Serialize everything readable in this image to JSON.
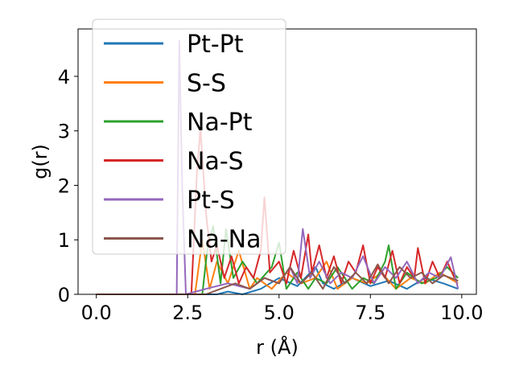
{
  "chart_data": {
    "type": "line",
    "xlabel": "r (Å)",
    "ylabel": "g(r)",
    "xlim": [
      -0.5,
      10.4
    ],
    "ylim": [
      0,
      4.87
    ],
    "xticks": [
      0.0,
      2.5,
      5.0,
      7.5,
      10.0
    ],
    "xtick_labels": [
      "0.0",
      "2.5",
      "5.0",
      "7.5",
      "10.0"
    ],
    "yticks": [
      0,
      1,
      2,
      3,
      4
    ],
    "ytick_labels": [
      "0",
      "1",
      "2",
      "3",
      "4"
    ],
    "grid": false,
    "legend_position": "upper-left",
    "series": [
      {
        "name": "Pt-Pt",
        "color": "#1f77b4",
        "x": [
          0,
          3.0,
          3.3,
          3.6,
          4.0,
          4.5,
          5.0,
          5.5,
          6.0,
          6.2,
          6.5,
          7.0,
          7.5,
          8.0,
          8.5,
          9.0,
          9.5,
          9.9
        ],
        "y": [
          0,
          0,
          0,
          0.05,
          0,
          0.1,
          0.3,
          0.15,
          0.5,
          0.2,
          0.1,
          0.3,
          0.15,
          0.25,
          0.1,
          0.3,
          0.2,
          0.1
        ]
      },
      {
        "name": "S-S",
        "color": "#ff7f0e",
        "x": [
          0,
          2.7,
          2.9,
          3.1,
          3.3,
          3.6,
          3.9,
          4.2,
          4.4,
          4.8,
          5.2,
          5.6,
          6.0,
          6.3,
          6.6,
          7.0,
          7.4,
          7.8,
          8.2,
          8.6,
          9.0,
          9.4,
          9.9
        ],
        "y": [
          0,
          0,
          1.0,
          0.1,
          0.6,
          0.2,
          0.8,
          0.1,
          0.3,
          0.1,
          0.4,
          0.2,
          0.3,
          0.6,
          0.1,
          0.3,
          0.2,
          0.4,
          0.1,
          0.3,
          0.2,
          0.4,
          0.2
        ]
      },
      {
        "name": "Na-Pt",
        "color": "#2ca02c",
        "x": [
          0,
          2.9,
          3.05,
          3.2,
          3.4,
          3.55,
          3.75,
          4.0,
          4.4,
          4.8,
          5.0,
          5.2,
          5.5,
          5.8,
          6.0,
          6.3,
          6.6,
          7.0,
          7.3,
          7.6,
          7.9,
          8.0,
          8.2,
          8.5,
          8.9,
          9.3,
          9.6,
          9.9
        ],
        "y": [
          0,
          0,
          0.9,
          1.25,
          0.2,
          1.2,
          0.3,
          0.6,
          0.2,
          0.5,
          0.95,
          0.1,
          0.4,
          0.1,
          0.3,
          0.2,
          0.5,
          0.1,
          0.3,
          0.2,
          0.6,
          0.9,
          0.1,
          0.4,
          0.2,
          0.3,
          0.5,
          0.3
        ]
      },
      {
        "name": "Na-S",
        "color": "#d62728",
        "x": [
          0,
          2.6,
          2.75,
          2.85,
          3.0,
          3.15,
          3.3,
          3.5,
          3.7,
          3.9,
          4.1,
          4.3,
          4.5,
          4.6,
          4.75,
          5.0,
          5.2,
          5.4,
          5.6,
          5.8,
          5.9,
          6.1,
          6.3,
          6.5,
          6.7,
          6.9,
          7.1,
          7.3,
          7.5,
          7.7,
          7.9,
          8.1,
          8.3,
          8.5,
          8.7,
          8.8,
          9.0,
          9.2,
          9.4,
          9.6,
          9.8
        ],
        "y": [
          0,
          0,
          2.2,
          3.05,
          1.5,
          0.6,
          0.9,
          0.3,
          0.7,
          0.2,
          0.5,
          0.3,
          0.8,
          1.78,
          0.4,
          0.6,
          0.2,
          0.8,
          0.3,
          1.1,
          0.4,
          0.9,
          0.3,
          0.7,
          0.2,
          0.6,
          0.4,
          0.9,
          0.2,
          0.5,
          0.3,
          0.8,
          0.2,
          0.5,
          0.3,
          0.85,
          0.2,
          0.6,
          0.3,
          0.6,
          0.3
        ]
      },
      {
        "name": "Pt-S",
        "color": "#9467bd",
        "x": [
          0,
          2.2,
          2.27,
          2.35,
          2.45,
          3.0,
          3.6,
          4.2,
          4.6,
          5.0,
          5.3,
          5.5,
          5.65,
          5.85,
          6.1,
          6.4,
          6.7,
          7.0,
          7.3,
          7.6,
          7.9,
          8.2,
          8.5,
          8.8,
          9.1,
          9.4,
          9.7,
          9.9
        ],
        "y": [
          0,
          0,
          4.65,
          2.0,
          0,
          0.1,
          0.2,
          0.1,
          0.3,
          0.2,
          0.5,
          0.2,
          1.2,
          0.3,
          0.6,
          0.2,
          0.4,
          0.3,
          0.7,
          0.2,
          0.5,
          0.3,
          0.6,
          0.2,
          0.4,
          0.3,
          0.68,
          0.1
        ]
      },
      {
        "name": "Na-Na",
        "color": "#8c564b",
        "x": [
          0,
          3.0,
          3.4,
          3.8,
          4.2,
          4.6,
          5.0,
          5.3,
          5.6,
          5.9,
          6.2,
          6.5,
          6.8,
          7.1,
          7.4,
          7.7,
          8.0,
          8.3,
          8.6,
          8.9,
          9.2,
          9.5,
          9.9
        ],
        "y": [
          0,
          0,
          0.1,
          0.2,
          0.1,
          0.3,
          0.2,
          0.5,
          0.2,
          0.4,
          0.1,
          0.5,
          0.2,
          0.4,
          0.2,
          0.55,
          0.2,
          0.5,
          0.3,
          0.4,
          0.2,
          0.35,
          0.25
        ]
      }
    ]
  }
}
